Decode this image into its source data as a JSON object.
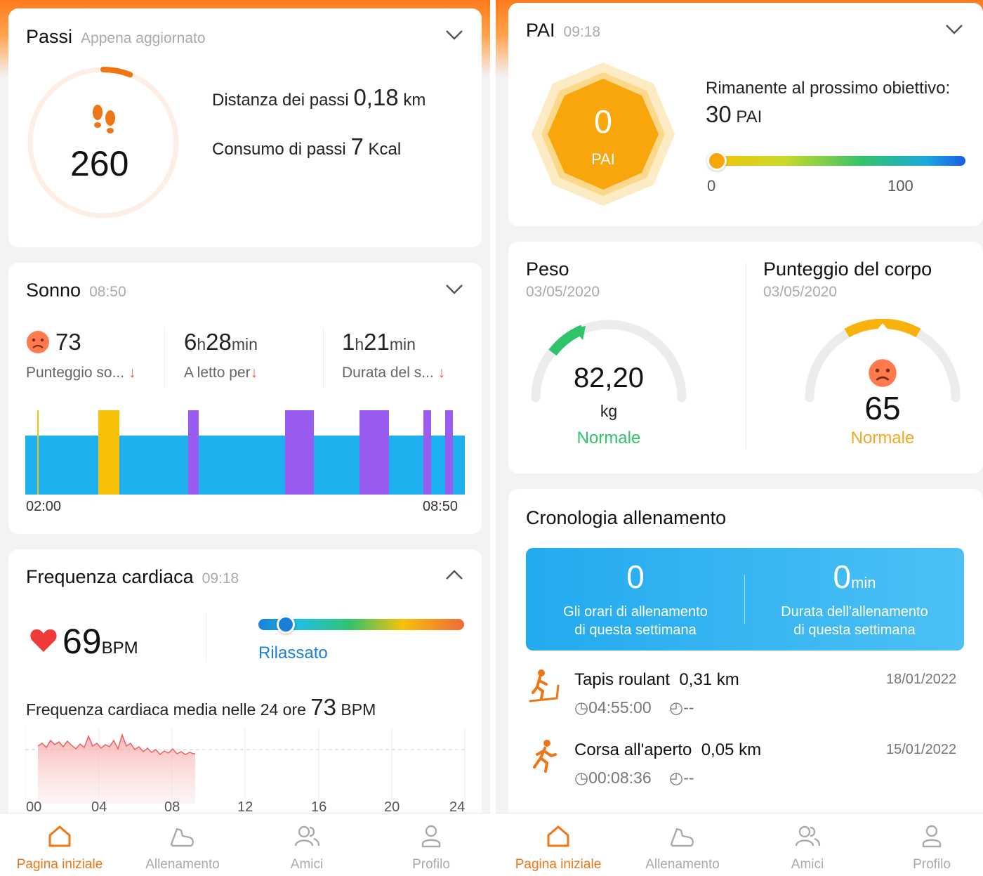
{
  "left": {
    "steps": {
      "title": "Passi",
      "subtitle": "Appena aggiornato",
      "count": "260",
      "distance_label": "Distanza dei passi",
      "distance_value": "0,18",
      "distance_unit": "km",
      "consumption_label": "Consumo di passi",
      "consumption_value": "7",
      "consumption_unit": "Kcal",
      "progress": 0.06
    },
    "sleep": {
      "title": "Sonno",
      "time": "08:50",
      "score": "73",
      "score_label": "Punteggio so...",
      "bed_h": "6",
      "bed_m": "28",
      "bed_label": "A letto per",
      "deep_h": "1",
      "deep_m": "21",
      "deep_label": "Durata del s...",
      "unit_h": "h",
      "unit_min": "min",
      "start": "02:00",
      "end": "08:50"
    },
    "heart": {
      "title": "Frequenza cardiaca",
      "time": "09:18",
      "bpm": "69",
      "bpm_unit": "BPM",
      "zone": "Rilassato",
      "avg_label": "Frequenza cardiaca media nelle 24 ore",
      "avg_value": "73",
      "avg_unit": "BPM",
      "x_ticks": [
        "00",
        "04",
        "08",
        "12",
        "16",
        "20",
        "24"
      ]
    }
  },
  "right": {
    "pai": {
      "title": "PAI",
      "time": "09:18",
      "value": "0",
      "unit": "PAI",
      "remaining_label": "Rimanente al prossimo obiettivo:",
      "remaining_value": "30",
      "remaining_unit": "PAI",
      "scale_min": "0",
      "scale_max": "100",
      "level": 0
    },
    "weight": {
      "title": "Peso",
      "date": "03/05/2020",
      "value": "82,20",
      "unit": "kg",
      "status": "Normale"
    },
    "body": {
      "title": "Punteggio del corpo",
      "date": "03/05/2020",
      "value": "65",
      "status": "Normale"
    },
    "workout": {
      "title": "Cronologia allenamento",
      "week_count": "0",
      "week_count_label_1": "Gli orari di allenamento",
      "week_count_label_2": "di questa settimana",
      "week_duration": "0",
      "week_duration_unit": "min",
      "week_duration_label_1": "Durata dell'allenamento",
      "week_duration_label_2": "di questa settimana",
      "items": [
        {
          "name": "Tapis roulant",
          "distance": "0,31 km",
          "date": "18/01/2022",
          "duration": "04:55:00",
          "pace": "--"
        },
        {
          "name": "Corsa all'aperto",
          "distance": "0,05 km",
          "date": "15/01/2022",
          "duration": "00:08:36",
          "pace": "--"
        }
      ]
    }
  },
  "nav": {
    "home": "Pagina iniziale",
    "workout": "Allenamento",
    "friends": "Amici",
    "profile": "Profilo"
  },
  "colors": {
    "accent": "#f07514",
    "sleep_light": "#1fb0f0",
    "sleep_deep": "#9a5cf0",
    "sleep_awake": "#f7c10a",
    "good_green": "#2fc36a",
    "warn_orange": "#f5a623",
    "link_blue": "#1a7fd8"
  }
}
